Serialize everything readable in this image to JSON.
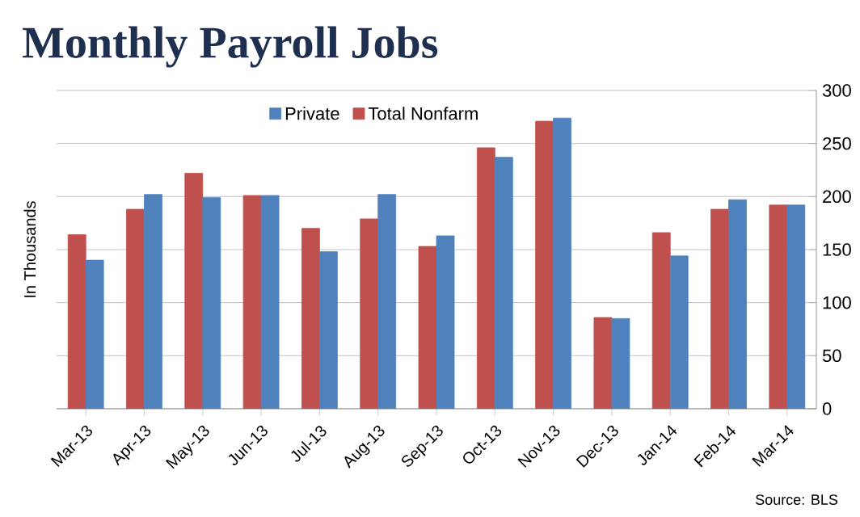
{
  "chart_data": {
    "type": "bar",
    "title": "Monthly Payroll Jobs",
    "ylabel": "In Thousands",
    "categories": [
      "Mar-13",
      "Apr-13",
      "May-13",
      "Jun-13",
      "Jul-13",
      "Aug-13",
      "Sep-13",
      "Oct-13",
      "Nov-13",
      "Dec-13",
      "Jan-14",
      "Feb-14",
      "Mar-14"
    ],
    "series": [
      {
        "name": "Total Nonfarm",
        "color": "#c0504d",
        "values": [
          164,
          188,
          222,
          201,
          170,
          179,
          153,
          246,
          271,
          86,
          166,
          188,
          192
        ]
      },
      {
        "name": "Private",
        "color": "#4f81bd",
        "values": [
          140,
          202,
          199,
          201,
          148,
          202,
          163,
          237,
          274,
          85,
          144,
          197,
          192
        ]
      }
    ],
    "ylim": [
      0,
      300
    ],
    "yticks": [
      0,
      50,
      100,
      150,
      200,
      250,
      300
    ],
    "grid": "y",
    "legend": "top",
    "annotations": [
      "Source:  BLS"
    ]
  }
}
